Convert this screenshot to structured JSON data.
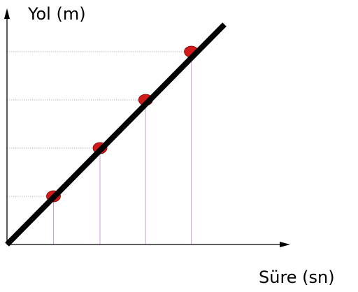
{
  "chart_data": {
    "type": "line",
    "title": "",
    "xlabel": "Süre (sn)",
    "ylabel": "Yol (m)",
    "x_tick_labels_shown": false,
    "y_tick_labels_shown": false,
    "grid": "guide lines to marked points",
    "series": [
      {
        "line_color": "#000000",
        "marker_color": "#d11a1a",
        "points": [
          [
            1,
            1
          ],
          [
            2,
            2
          ],
          [
            3,
            3
          ],
          [
            4,
            4
          ]
        ]
      }
    ],
    "guide_colors": {
      "horizontal": "#b9b9b9",
      "vertical": "#c9a3d3"
    }
  }
}
